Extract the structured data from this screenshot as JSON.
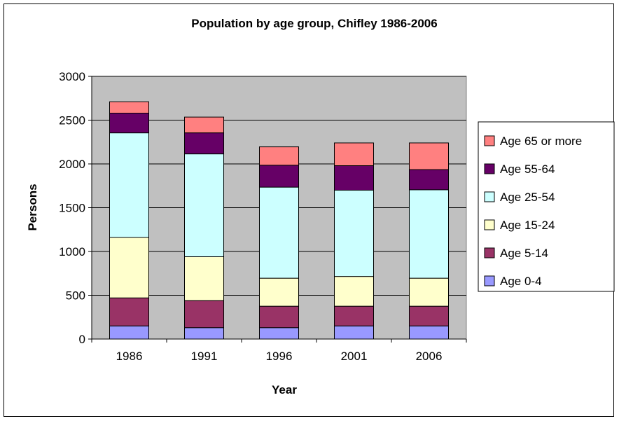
{
  "chart_data": {
    "type": "bar",
    "stacked": true,
    "title": "Population by age group, Chifley 1986-2006",
    "xlabel": "Year",
    "ylabel": "Persons",
    "ylim": [
      0,
      3000
    ],
    "yticks": [
      0,
      500,
      1000,
      1500,
      2000,
      2500,
      3000
    ],
    "grid": true,
    "legend": "right",
    "categories": [
      "1986",
      "1991",
      "1996",
      "2001",
      "2006"
    ],
    "series": [
      {
        "name": "Age 0-4",
        "color": "#9999ff",
        "values": [
          150,
          130,
          130,
          150,
          150
        ]
      },
      {
        "name": "Age 5-14",
        "color": "#993366",
        "values": [
          320,
          310,
          245,
          225,
          225
        ]
      },
      {
        "name": "Age 15-24",
        "color": "#ffffcc",
        "values": [
          690,
          500,
          320,
          340,
          320
        ]
      },
      {
        "name": "Age 25-54",
        "color": "#ccffff",
        "values": [
          1195,
          1175,
          1040,
          985,
          1010
        ]
      },
      {
        "name": "Age 55-64",
        "color": "#660066",
        "values": [
          225,
          240,
          250,
          280,
          230
        ]
      },
      {
        "name": "Age 65 or more",
        "color": "#ff8080",
        "values": [
          130,
          180,
          210,
          260,
          305
        ]
      }
    ]
  },
  "colors": {
    "plot_background": "#c0c0c0",
    "gridline": "#000000",
    "bar_outline": "#000000"
  }
}
